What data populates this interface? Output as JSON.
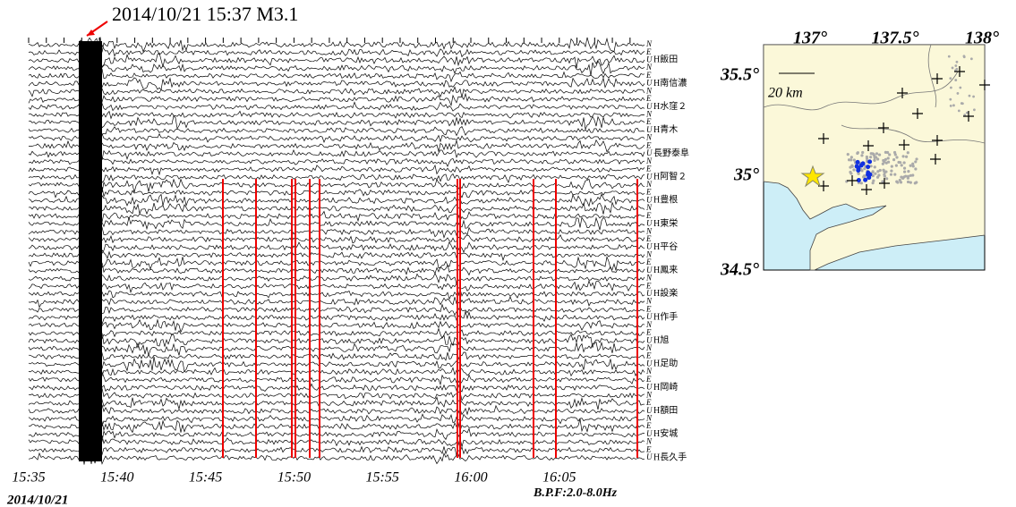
{
  "annotation": "2014/10/21 15:37 M3.1",
  "time_axis": {
    "ticks": [
      "15:35",
      "15:40",
      "15:45",
      "15:50",
      "15:55",
      "16:00",
      "16:05"
    ],
    "date": "2014/10/21"
  },
  "filter": "B.P.F:2.0-8.0Hz",
  "components": [
    "N",
    "E",
    "U"
  ],
  "stations": [
    "H飯田",
    "H南信濃",
    "H水窪２",
    "H青木",
    "長野泰阜",
    "H阿智２",
    "H豊根",
    "H東栄",
    "H平谷",
    "H鳳来",
    "H設楽",
    "H作手",
    "H旭",
    "H足助",
    "H岡崎",
    "H額田",
    "H安城",
    "H長久手"
  ],
  "map": {
    "lon_labels": [
      "137°",
      "137.5°",
      "138°"
    ],
    "lat_labels": [
      "35.5°",
      "35°",
      "34.5°"
    ],
    "scale": "20 km"
  }
}
